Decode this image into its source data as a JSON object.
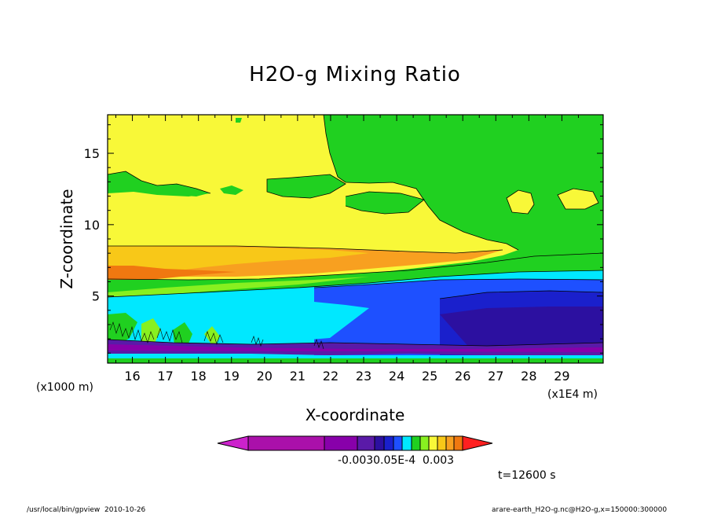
{
  "chart_data": {
    "type": "heatmap",
    "title": "H2O-g Mixing Ratio",
    "xlabel": "X-coordinate",
    "ylabel": "Z-coordinate",
    "x_unit_label": "(x1E4 m)",
    "y_unit_label": "(x1000 m)",
    "xlim": [
      15.25,
      30.25
    ],
    "ylim": [
      0.3,
      17.7
    ],
    "x_ticks": [
      "16",
      "17",
      "18",
      "19",
      "20",
      "21",
      "22",
      "23",
      "24",
      "25",
      "26",
      "27",
      "28",
      "29"
    ],
    "y_ticks": [
      "5",
      "10",
      "15"
    ],
    "colorbar": {
      "colors": [
        "#cc22cc",
        "#aa10aa",
        "#8800aa",
        "#5a1aa8",
        "#2c10a0",
        "#1a20cc",
        "#1e50ff",
        "#00e8ff",
        "#20d020",
        "#88f020",
        "#f8f838",
        "#f8c818",
        "#f8a020",
        "#f07810",
        "#ff2020"
      ],
      "labels": [
        "-0.003",
        "0.0E-4",
        "5E-4",
        "0.003"
      ],
      "label_text": "-0.0030.05E-4  0.003"
    },
    "time_label": "t=12600 s",
    "footer_left": "/usr/local/bin/gpview  2010-10-26",
    "footer_right": "arare-earth_H2O-g.nc@H2O-g,x=150000:300000"
  }
}
